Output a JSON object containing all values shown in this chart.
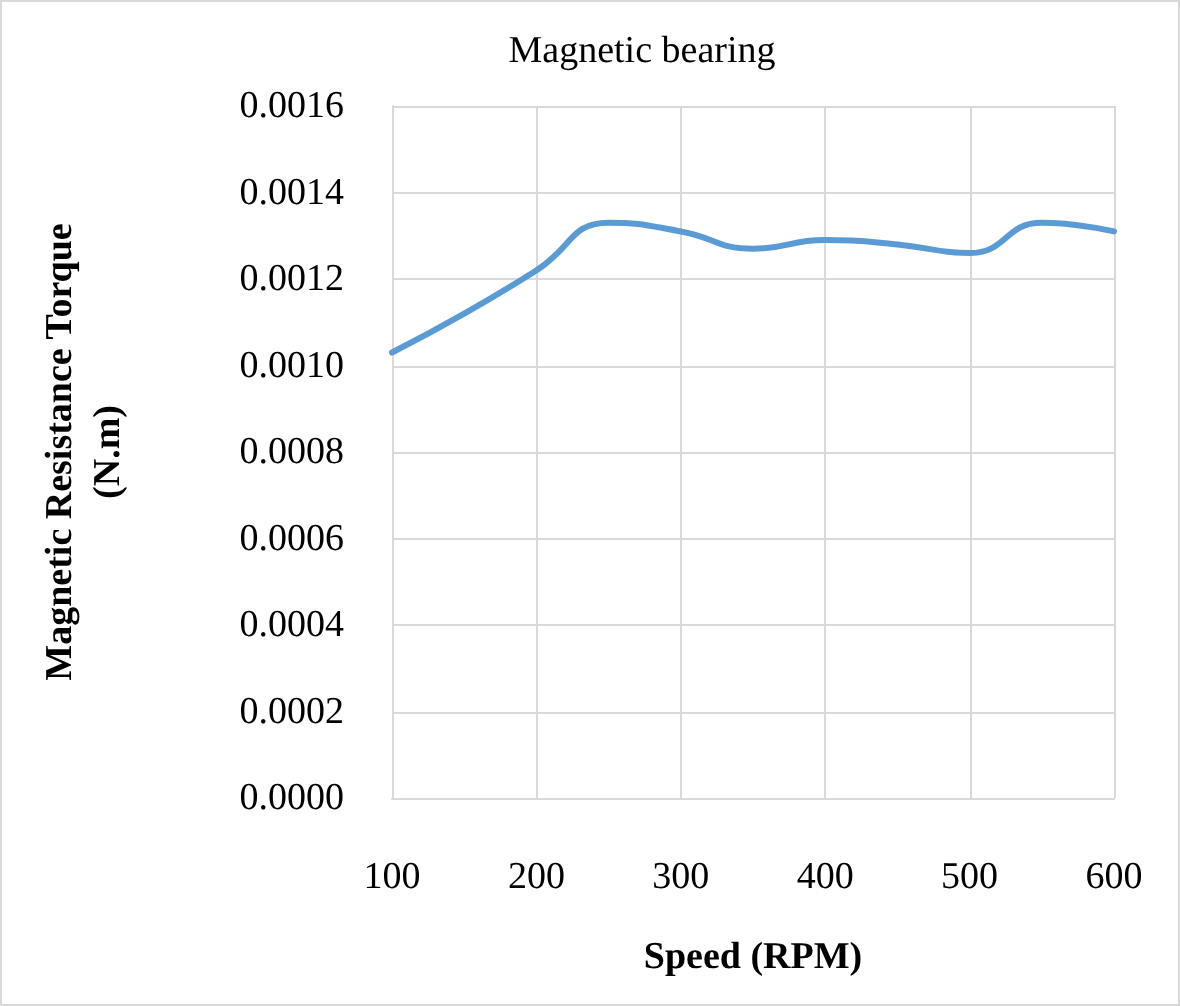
{
  "chart_data": {
    "type": "line",
    "title": "Magnetic bearing",
    "xlabel": "Speed (RPM)",
    "ylabel": "Magnetic Resistance Torque\n(N.m)",
    "x": [
      100,
      150,
      200,
      250,
      300,
      350,
      400,
      450,
      500,
      550,
      600
    ],
    "series": [
      {
        "color": "#5b9bd5",
        "values": [
          0.00103,
          0.00112,
          0.00122,
          0.00133,
          0.00131,
          0.00127,
          0.00129,
          0.00128,
          0.00126,
          0.00133,
          0.00131
        ]
      }
    ],
    "xlim": [
      100,
      600
    ],
    "xticks": [
      100,
      200,
      300,
      400,
      500,
      600
    ],
    "ylim": [
      0,
      0.0016
    ],
    "yticks": [
      {
        "value": 0,
        "label": "0.0000"
      },
      {
        "value": 0.0002,
        "label": "0.0002"
      },
      {
        "value": 0.0004,
        "label": "0.0004"
      },
      {
        "value": 0.0006,
        "label": "0.0006"
      },
      {
        "value": 0.0008,
        "label": "0.0008"
      },
      {
        "value": 0.001,
        "label": "0.0010"
      },
      {
        "value": 0.0012,
        "label": "0.0012"
      },
      {
        "value": 0.0014,
        "label": "0.0014"
      },
      {
        "value": 0.0016,
        "label": "0.0016"
      }
    ],
    "grid": true,
    "marker": "none",
    "line_style": "solid"
  }
}
